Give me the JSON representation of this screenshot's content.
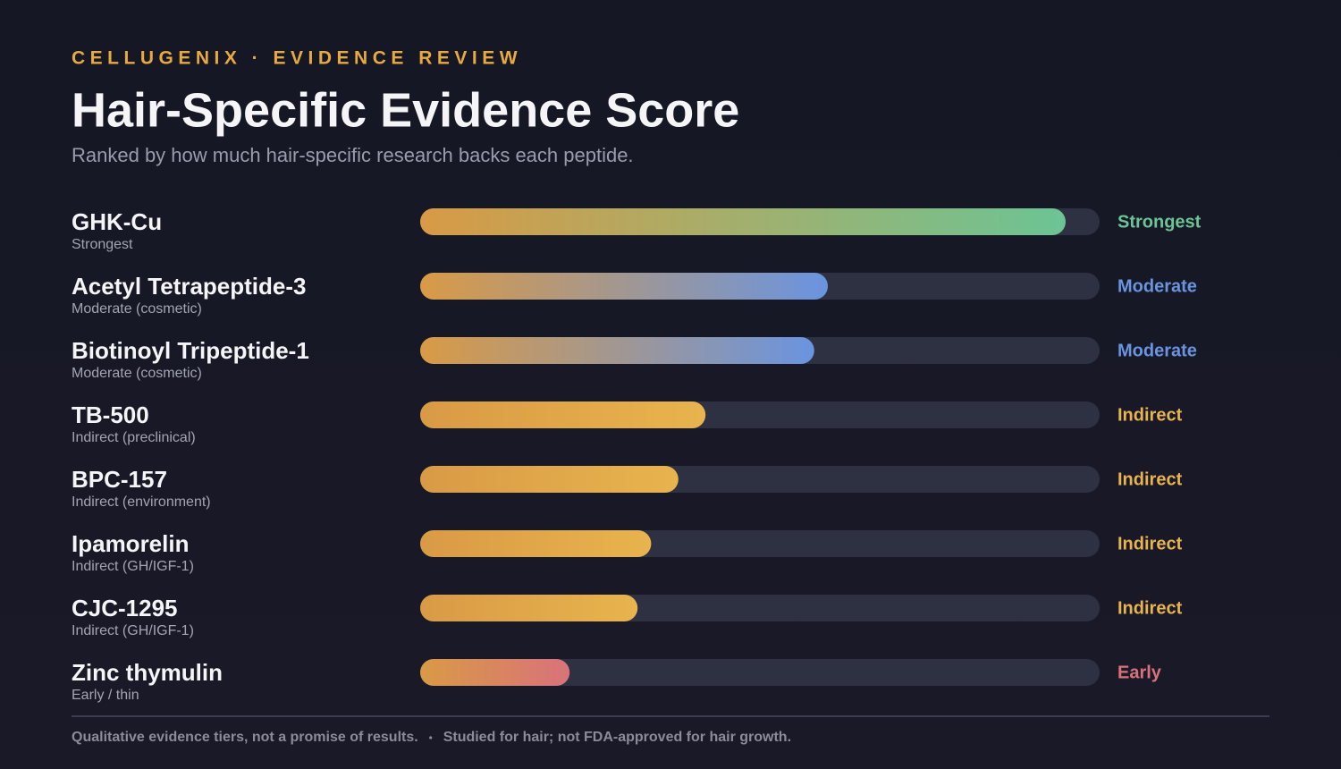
{
  "chart_data": {
    "type": "bar",
    "kicker": "CELLUGENIX · EVIDENCE REVIEW",
    "title": "Hair-Specific Evidence Score",
    "subtitle": "Ranked by how much hair-specific research backs each peptide.",
    "categories": [
      "GHK-Cu",
      "Acetyl Tetrapeptide-3",
      "Biotinoyl Tripeptide-1",
      "TB-500",
      "BPC-157",
      "Ipamorelin",
      "CJC-1295",
      "Zinc thymulin"
    ],
    "descriptions": [
      "Strongest",
      "Moderate (cosmetic)",
      "Moderate (cosmetic)",
      "Indirect (preclinical)",
      "Indirect (environment)",
      "Indirect (GH/IGF-1)",
      "Indirect (GH/IGF-1)",
      "Early / thin"
    ],
    "values": [
      95,
      60,
      58,
      42,
      38,
      34,
      32,
      22
    ],
    "tiers": [
      "Strongest",
      "Moderate",
      "Moderate",
      "Indirect",
      "Indirect",
      "Indirect",
      "Indirect",
      "Early"
    ],
    "colors": [
      "#6cc495",
      "#6a94e0",
      "#6a94e0",
      "#e8b44e",
      "#e8b44e",
      "#e8b44e",
      "#e8b44e",
      "#d9727a"
    ],
    "base_color": "#d99a45",
    "xlim": [
      0,
      100
    ],
    "notes": [
      "Qualitative evidence tiers, not a promise of results.",
      "Studied for hair; not FDA-approved for hair growth."
    ]
  }
}
